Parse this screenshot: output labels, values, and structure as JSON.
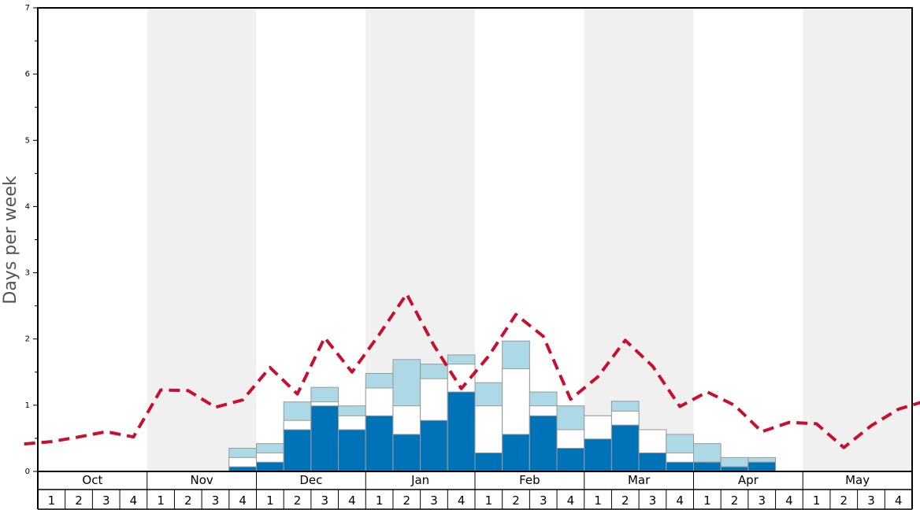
{
  "chart_data": {
    "type": "bar",
    "ylabel": "Days per week",
    "ylim": [
      0,
      7
    ],
    "y_ticks": [
      "0",
      "1",
      "2",
      "3",
      "4",
      "5",
      "6",
      "7"
    ],
    "months": [
      "Oct",
      "Nov",
      "Dec",
      "Jan",
      "Feb",
      "Mar",
      "Apr",
      "May"
    ],
    "weeks": [
      "1",
      "2",
      "3",
      "4"
    ],
    "series": [
      {
        "values": [
          0,
          0,
          0,
          0,
          0,
          0,
          0,
          0.07,
          0.14,
          0.63,
          0.99,
          0.63,
          0.84,
          0.56,
          0.77,
          1.2,
          0.28,
          0.56,
          0.84,
          0.35,
          0.49,
          0.7,
          0.28,
          0.14,
          0.14,
          0.07,
          0.14,
          0,
          0,
          0,
          0,
          0
        ]
      },
      {
        "values": [
          0,
          0,
          0,
          0,
          0,
          0,
          0,
          0.21,
          0.28,
          0.77,
          1.05,
          0.84,
          1.26,
          0.99,
          1.4,
          1.62,
          0.99,
          1.55,
          0.99,
          0.63,
          0.84,
          0.91,
          0.63,
          0.28,
          0.14,
          0.07,
          0.14,
          0,
          0,
          0,
          0,
          0
        ]
      },
      {
        "values": [
          0,
          0,
          0,
          0,
          0,
          0,
          0,
          0.35,
          0.42,
          1.05,
          1.27,
          0.99,
          1.48,
          1.69,
          1.62,
          1.76,
          1.34,
          1.97,
          1.2,
          0.99,
          0.84,
          1.06,
          0.63,
          0.56,
          0.42,
          0.21,
          0.21,
          0,
          0,
          0,
          0,
          0
        ]
      },
      {
        "values": [
          0.45,
          0.52,
          0.6,
          0.52,
          1.23,
          1.22,
          0.97,
          1.08,
          1.57,
          1.17,
          2.02,
          1.5,
          2.07,
          2.68,
          1.9,
          1.25,
          1.74,
          2.37,
          2.04,
          1.09,
          1.43,
          1.98,
          1.59,
          0.98,
          1.2,
          1.0,
          0.6,
          0.74,
          0.72,
          0.36,
          0.69,
          0.94
        ]
      }
    ],
    "colors": {
      "deep": "#0072b8",
      "middle": "#ffffff",
      "top": "#add8e6",
      "line": "#c8102e",
      "band": "#f0f0f0"
    }
  }
}
